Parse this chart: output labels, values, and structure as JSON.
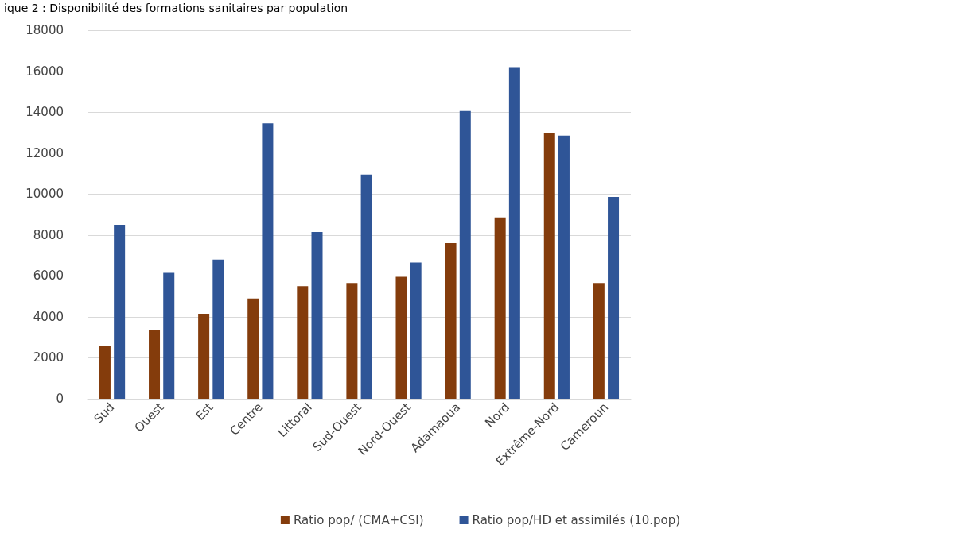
{
  "chart_data": {
    "type": "bar",
    "title": "ique 2 : Disponibilité des formations sanitaires par population",
    "categories": [
      "Sud",
      "Ouest",
      "Est",
      "Centre",
      "Littoral",
      "Sud-Ouest",
      "Nord-Ouest",
      "Adamaoua",
      "Nord",
      "Extrême-Nord",
      "Cameroun"
    ],
    "series": [
      {
        "name": "Ratio pop/ (CMA+CSI)",
        "color": "#843c0c",
        "values": [
          2600,
          3350,
          4150,
          4900,
          5500,
          5650,
          5950,
          7600,
          8850,
          13000,
          5650
        ]
      },
      {
        "name": "Ratio pop/HD et assimilés (10.pop)",
        "color": "#2f5597",
        "values": [
          8500,
          6150,
          6800,
          13450,
          8150,
          10950,
          6650,
          14050,
          16200,
          12850,
          9850
        ]
      }
    ],
    "ylim": [
      0,
      18000
    ],
    "yticks": [
      0,
      2000,
      4000,
      6000,
      8000,
      10000,
      12000,
      14000,
      16000,
      18000
    ],
    "grid": "y",
    "legend": "bottom"
  }
}
